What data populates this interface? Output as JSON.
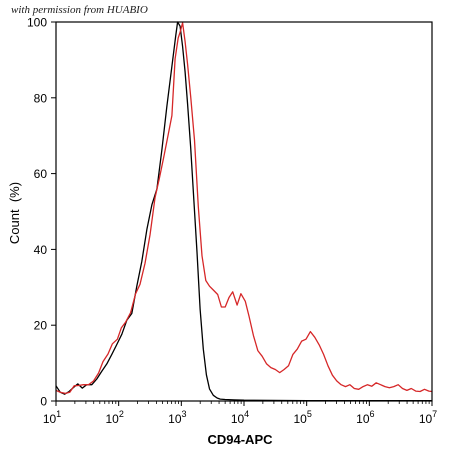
{
  "watermark": "with permission from HUABIO",
  "chart_data": {
    "type": "line",
    "title": "",
    "xlabel": "CD94-APC",
    "ylabel": "Count  (%)",
    "xscale": "log",
    "xlim": [
      10,
      10000000
    ],
    "ylim": [
      0,
      100
    ],
    "x_ticks": [
      {
        "base": "10",
        "exp": "1",
        "value": 10
      },
      {
        "base": "10",
        "exp": "2",
        "value": 100
      },
      {
        "base": "10",
        "exp": "3",
        "value": 1000
      },
      {
        "base": "10",
        "exp": "4",
        "value": 10000
      },
      {
        "base": "10",
        "exp": "5",
        "value": 100000
      },
      {
        "base": "10",
        "exp": "6",
        "value": 1000000
      },
      {
        "base": "10",
        "exp": "7",
        "value": 10000000
      }
    ],
    "y_ticks": [
      "0",
      "20",
      "40",
      "60",
      "80",
      "100"
    ],
    "y_tick_values": [
      0,
      20,
      40,
      60,
      80,
      100
    ],
    "grid": false,
    "series": [
      {
        "color": "#000000",
        "points": [
          [
            10,
            4
          ],
          [
            11.7,
            2.3
          ],
          [
            13.7,
            1.8
          ],
          [
            16.2,
            2.5
          ],
          [
            19.1,
            3.6
          ],
          [
            22.3,
            4.5
          ],
          [
            26.3,
            3.4
          ],
          [
            30.9,
            4.3
          ],
          [
            37.2,
            4.3
          ],
          [
            44.7,
            5.8
          ],
          [
            53.7,
            7.8
          ],
          [
            64.6,
            9.8
          ],
          [
            77.6,
            12.3
          ],
          [
            93.3,
            14.9
          ],
          [
            112,
            17.6
          ],
          [
            135,
            21.3
          ],
          [
            162,
            23.1
          ],
          [
            195,
            30.3
          ],
          [
            234,
            36.8
          ],
          [
            282,
            45.3
          ],
          [
            339,
            51.8
          ],
          [
            407,
            55.9
          ],
          [
            490,
            66.3
          ],
          [
            589,
            77.8
          ],
          [
            708,
            88.3
          ],
          [
            813,
            96.3
          ],
          [
            871,
            100
          ],
          [
            955,
            98.9
          ],
          [
            1047,
            93.5
          ],
          [
            1148,
            86.8
          ],
          [
            1259,
            78.3
          ],
          [
            1413,
            66.8
          ],
          [
            1585,
            52.8
          ],
          [
            1778,
            39.3
          ],
          [
            1995,
            24.3
          ],
          [
            2239,
            13.7
          ],
          [
            2512,
            6.9
          ],
          [
            2818,
            3.2
          ],
          [
            3236,
            1.5
          ],
          [
            3715,
            0.8
          ],
          [
            4169,
            0.5
          ],
          [
            5000,
            0.4
          ],
          [
            7000,
            0.3
          ],
          [
            10000,
            0.2
          ],
          [
            100000,
            0.1
          ],
          [
            10000000,
            0.1
          ]
        ]
      },
      {
        "color": "#d62728",
        "points": [
          [
            10,
            2.8
          ],
          [
            11.7,
            2.3
          ],
          [
            14.1,
            2
          ],
          [
            16.6,
            2.3
          ],
          [
            19.5,
            4
          ],
          [
            22.9,
            4.1
          ],
          [
            27.5,
            4.3
          ],
          [
            33.1,
            4.3
          ],
          [
            39.8,
            5.3
          ],
          [
            47.9,
            7.4
          ],
          [
            56.2,
            10.4
          ],
          [
            67.6,
            12.4
          ],
          [
            79.4,
            15.1
          ],
          [
            95.5,
            16.3
          ],
          [
            110,
            19.3
          ],
          [
            129,
            20.8
          ],
          [
            155,
            23.3
          ],
          [
            186,
            28.3
          ],
          [
            219,
            30.8
          ],
          [
            263,
            36.3
          ],
          [
            316,
            43.8
          ],
          [
            380,
            53.6
          ],
          [
            447,
            58.8
          ],
          [
            525,
            64.4
          ],
          [
            617,
            70.3
          ],
          [
            708,
            75.3
          ],
          [
            794,
            90.3
          ],
          [
            891,
            95.8
          ],
          [
            955,
            97.3
          ],
          [
            1047,
            99.8
          ],
          [
            1148,
            94.8
          ],
          [
            1259,
            88.8
          ],
          [
            1413,
            80.3
          ],
          [
            1622,
            68.8
          ],
          [
            1862,
            51.3
          ],
          [
            2138,
            38.3
          ],
          [
            2455,
            31.8
          ],
          [
            2818,
            30.3
          ],
          [
            3236,
            29.3
          ],
          [
            3802,
            28.1
          ],
          [
            4365,
            24.8
          ],
          [
            5012,
            24.8
          ],
          [
            5754,
            27.3
          ],
          [
            6607,
            28.8
          ],
          [
            7762,
            25.3
          ],
          [
            8913,
            28.3
          ],
          [
            10471,
            26.3
          ],
          [
            12023,
            22.4
          ],
          [
            14125,
            17.3
          ],
          [
            16596,
            13.3
          ],
          [
            19498,
            11.8
          ],
          [
            22908,
            9.8
          ],
          [
            26915,
            8.8
          ],
          [
            31623,
            8.3
          ],
          [
            37153,
            7.5
          ],
          [
            43652,
            8.3
          ],
          [
            51286,
            9.3
          ],
          [
            60256,
            12.3
          ],
          [
            70795,
            13.7
          ],
          [
            83176,
            15.8
          ],
          [
            97724,
            16.3
          ],
          [
            114815,
            18.3
          ],
          [
            134896,
            16.8
          ],
          [
            158489,
            14.8
          ],
          [
            186209,
            12.3
          ],
          [
            218776,
            9.3
          ],
          [
            257040,
            6.8
          ],
          [
            301995,
            5.3
          ],
          [
            354813,
            4.3
          ],
          [
            416869,
            3.8
          ],
          [
            489779,
            4.3
          ],
          [
            575440,
            3.3
          ],
          [
            676083,
            3.1
          ],
          [
            794328,
            3.8
          ],
          [
            933254,
            4.3
          ],
          [
            1096478,
            3.9
          ],
          [
            1288250,
            4.8
          ],
          [
            1513561,
            4.3
          ],
          [
            1778279,
            3.8
          ],
          [
            2089296,
            3.5
          ],
          [
            2454709,
            3.8
          ],
          [
            2884032,
            4.3
          ],
          [
            3388442,
            3.3
          ],
          [
            3981072,
            2.8
          ],
          [
            4677351,
            3.3
          ],
          [
            5495409,
            2.6
          ],
          [
            6456542,
            2.5
          ],
          [
            7585776,
            3.1
          ],
          [
            8912509,
            2.6
          ],
          [
            10000000,
            2.5
          ]
        ]
      }
    ]
  }
}
